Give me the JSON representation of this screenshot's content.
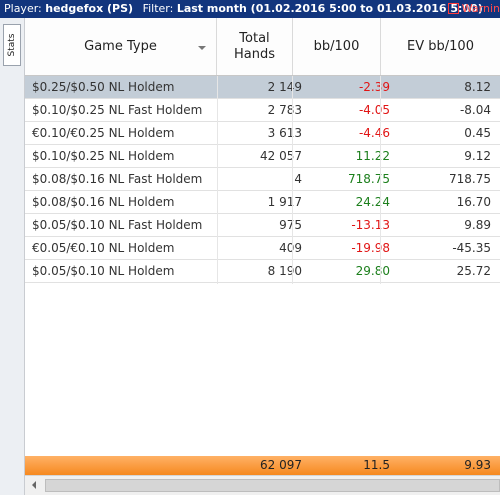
{
  "header": {
    "player_label": "Player:",
    "player_value": "hedgefox (PS)",
    "filter_label": "Filter:",
    "filter_value": "Last month (01.02.2016 5:00 to 01.03.2016 5:00)",
    "warning_label": "Warnin"
  },
  "sidebar": {
    "stats_tab": "Stats"
  },
  "columns": [
    {
      "label": "Game Type"
    },
    {
      "label": "Total\nHands"
    },
    {
      "label": "bb/100"
    },
    {
      "label": "EV bb/100"
    }
  ],
  "rows": [
    {
      "game": "$0.25/$0.50 NL Holdem",
      "hands": "2 149",
      "bb": "-2.39",
      "ev": "8.12"
    },
    {
      "game": "$0.10/$0.25 NL Fast Holdem",
      "hands": "2 783",
      "bb": "-4.05",
      "ev": "-8.04"
    },
    {
      "game": "€0.10/€0.25 NL Holdem",
      "hands": "3 613",
      "bb": "-4.46",
      "ev": "0.45"
    },
    {
      "game": "$0.10/$0.25 NL Holdem",
      "hands": "42 057",
      "bb": "11.22",
      "ev": "9.12"
    },
    {
      "game": "$0.08/$0.16 NL Fast Holdem",
      "hands": "4",
      "bb": "718.75",
      "ev": "718.75"
    },
    {
      "game": "$0.08/$0.16 NL Holdem",
      "hands": "1 917",
      "bb": "24.24",
      "ev": "16.70"
    },
    {
      "game": "$0.05/$0.10 NL Fast Holdem",
      "hands": "975",
      "bb": "-13.13",
      "ev": "9.89"
    },
    {
      "game": "€0.05/€0.10 NL Holdem",
      "hands": "409",
      "bb": "-19.98",
      "ev": "-45.35"
    },
    {
      "game": "$0.05/$0.10 NL Holdem",
      "hands": "8 190",
      "bb": "29.80",
      "ev": "25.72"
    }
  ],
  "totals": {
    "hands": "62 097",
    "bb": "11.5",
    "ev": "9.93"
  },
  "colors": {
    "titlebar": "#12357d",
    "selected_row": "#c3cdd7",
    "positive": "#1c7f1c",
    "negative": "#e11414",
    "total_row": "#f6891f"
  }
}
